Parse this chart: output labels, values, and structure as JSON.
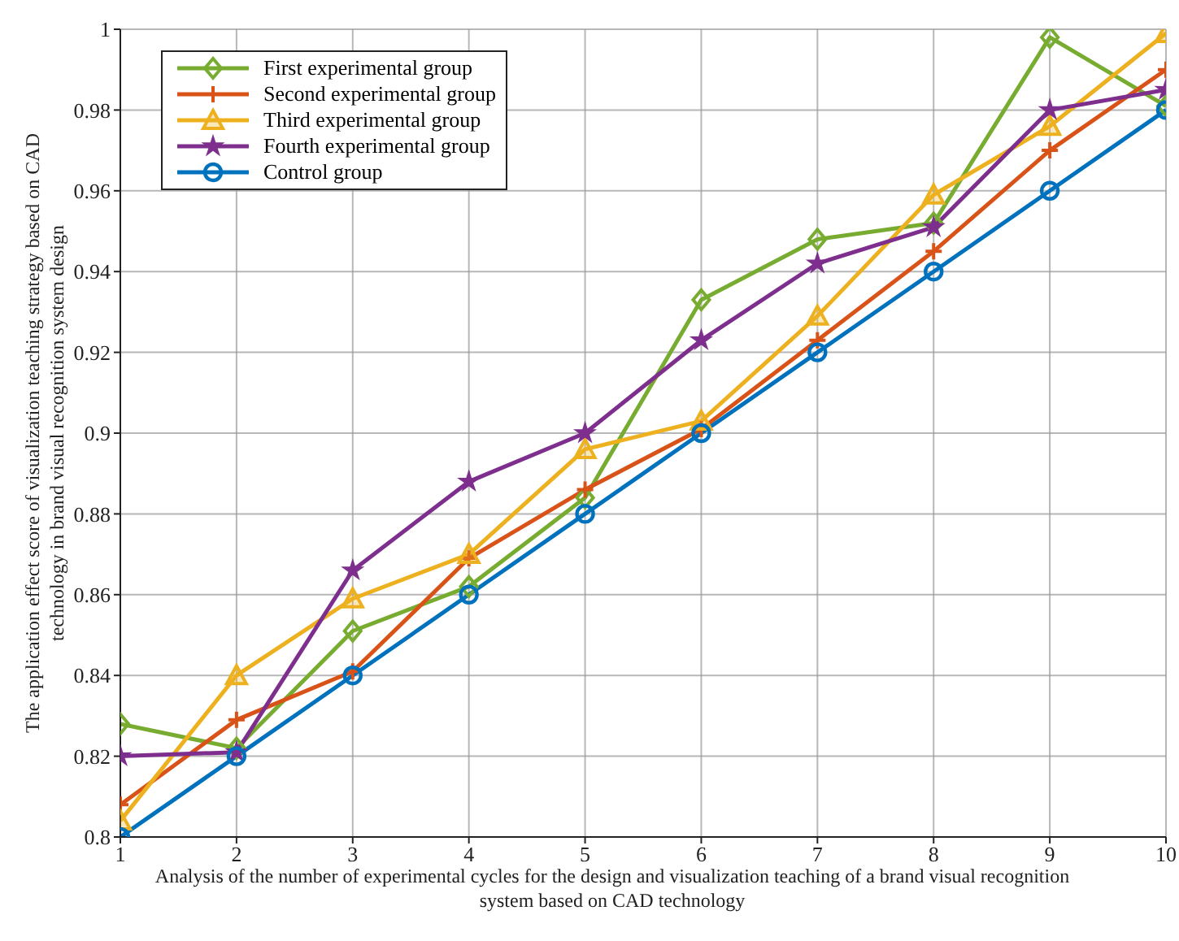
{
  "chart_data": {
    "type": "line",
    "xlabel": "Analysis of the number of experimental cycles for the design and visualization teaching of a brand visual recognition system based on CAD technology",
    "ylabel": "The application effect score of visualization teaching strategy based on CAD technology in brand visual recognition system design",
    "x": [
      1,
      2,
      3,
      4,
      5,
      6,
      7,
      8,
      9,
      10
    ],
    "series": [
      {
        "name": "First experimental group",
        "color": "#77ac30",
        "marker": "diamond",
        "values": [
          0.828,
          0.822,
          0.851,
          0.862,
          0.884,
          0.933,
          0.948,
          0.952,
          0.998,
          0.981
        ]
      },
      {
        "name": "Second experimental group",
        "color": "#d95319",
        "marker": "cross",
        "values": [
          0.808,
          0.829,
          0.841,
          0.869,
          0.886,
          0.901,
          0.923,
          0.945,
          0.97,
          0.99
        ]
      },
      {
        "name": "Third experimental group",
        "color": "#edb120",
        "marker": "triangle",
        "values": [
          0.804,
          0.84,
          0.859,
          0.87,
          0.896,
          0.903,
          0.929,
          0.959,
          0.976,
          0.999
        ]
      },
      {
        "name": "Fourth experimental group",
        "color": "#7e2f8e",
        "marker": "star",
        "values": [
          0.82,
          0.821,
          0.866,
          0.888,
          0.9,
          0.923,
          0.942,
          0.951,
          0.98,
          0.985
        ]
      },
      {
        "name": "Control group",
        "color": "#0072bd",
        "marker": "circle",
        "values": [
          0.8,
          0.82,
          0.84,
          0.86,
          0.88,
          0.9,
          0.92,
          0.94,
          0.96,
          0.98
        ]
      }
    ],
    "xlim": [
      1,
      10
    ],
    "xticks": [
      1,
      2,
      3,
      4,
      5,
      6,
      7,
      8,
      9,
      10
    ],
    "ylim": [
      0.8,
      1
    ],
    "yticks": [
      {
        "value": 0.8,
        "label": "0.8"
      },
      0.82,
      0.84,
      0.86,
      0.88,
      {
        "value": 0.9,
        "label": "0.9"
      },
      0.92,
      0.94,
      0.96,
      0.98,
      {
        "value": 1,
        "label": "1"
      }
    ],
    "grid": true,
    "legend": "top left",
    "line_style": "solid"
  }
}
